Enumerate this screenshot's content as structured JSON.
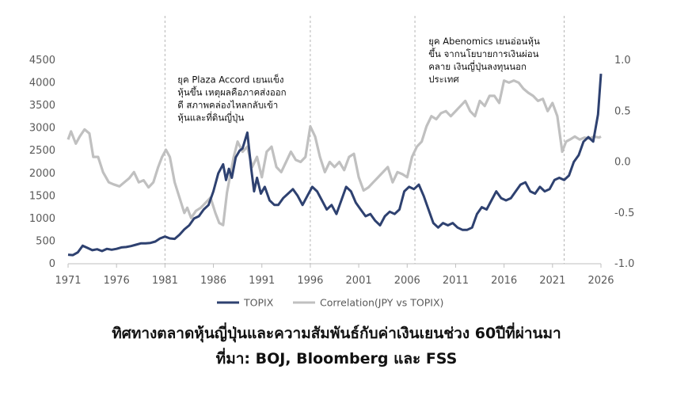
{
  "chart_data": {
    "type": "line",
    "title": "ทิศทางตลาดหุ้นญี่ปุ่นและความสัมพันธ์กับค่าเงินเยนช่วง 60ปีที่ผ่านมา",
    "source": "ที่มา: BOJ, Bloomberg และ FSS",
    "x_ticks": [
      "1971",
      "1976",
      "1981",
      "1986",
      "1991",
      "1996",
      "2001",
      "2006",
      "2011",
      "2016",
      "2021",
      "2026"
    ],
    "xlim": [
      1971,
      2026
    ],
    "ylim_left": [
      0,
      4500
    ],
    "y_ticks_left": [
      "0",
      "500",
      "1000",
      "1500",
      "2000",
      "2500",
      "3000",
      "3500",
      "4000",
      "4500"
    ],
    "ylim_right": [
      -1.0,
      1.0
    ],
    "y_ticks_right": [
      "-1.0",
      "-0.5",
      "0.0",
      "0.5",
      "1.0"
    ],
    "vlines": [
      1981,
      1996,
      2006.8,
      2022.2
    ],
    "annotations": [
      {
        "x": 1982.3,
        "y": 4000,
        "lines": [
          "ยุค Plaza Accord เยนแข็ง",
          "หุ้นขึ้น เหตุผลคือภาคส่งออก",
          "ดี สภาพคล่องไหลกลับเข้า",
          "หุ้นและที่ดินญี่ปุ่น"
        ]
      },
      {
        "x": 2008.2,
        "y": 4850,
        "lines": [
          "ยุค Abenomics เยนอ่อนหุ้น",
          "ขึ้น จากนโยบายการเงินผ่อน",
          "คลาย เงินญี่ปุ่นลงทุนนอก",
          "ประเทศ"
        ]
      }
    ],
    "series": [
      {
        "name": "TOPIX",
        "axis": "left",
        "color": "#2e4170",
        "x": [
          1971,
          1971.5,
          1972,
          1972.5,
          1973,
          1973.5,
          1974,
          1974.5,
          1975,
          1975.5,
          1976,
          1976.5,
          1977,
          1977.5,
          1978,
          1978.5,
          1979,
          1979.5,
          1980,
          1980.5,
          1981,
          1981.5,
          1982,
          1982.5,
          1983,
          1983.5,
          1984,
          1984.5,
          1985,
          1985.5,
          1986,
          1986.5,
          1987,
          1987.3,
          1987.6,
          1987.9,
          1988.3,
          1988.7,
          1989,
          1989.5,
          1989.9,
          1990.2,
          1990.5,
          1990.9,
          1991.3,
          1991.8,
          1992.3,
          1992.7,
          1993.2,
          1993.7,
          1994.2,
          1994.7,
          1995.2,
          1995.7,
          1996.2,
          1996.7,
          1997.2,
          1997.7,
          1998.2,
          1998.7,
          1999.2,
          1999.7,
          2000.2,
          2000.7,
          2001.2,
          2001.7,
          2002.2,
          2002.7,
          2003.2,
          2003.7,
          2004.2,
          2004.7,
          2005.2,
          2005.7,
          2006.2,
          2006.7,
          2007.2,
          2007.7,
          2008.2,
          2008.7,
          2009.2,
          2009.7,
          2010.2,
          2010.7,
          2011.2,
          2011.7,
          2012.2,
          2012.7,
          2013.2,
          2013.7,
          2014.2,
          2014.7,
          2015.2,
          2015.7,
          2016.2,
          2016.7,
          2017.2,
          2017.7,
          2018.2,
          2018.7,
          2019.2,
          2019.7,
          2020.2,
          2020.7,
          2021.2,
          2021.7,
          2022.2,
          2022.7,
          2023.2,
          2023.7,
          2024.2,
          2024.7,
          2025.2,
          2025.7,
          2026
        ],
        "values": [
          200,
          190,
          250,
          400,
          350,
          300,
          320,
          280,
          330,
          310,
          330,
          360,
          370,
          390,
          420,
          450,
          450,
          460,
          490,
          560,
          600,
          560,
          550,
          640,
          760,
          850,
          1000,
          1050,
          1200,
          1300,
          1600,
          2000,
          2200,
          1850,
          2100,
          1900,
          2350,
          2500,
          2550,
          2900,
          2100,
          1600,
          1900,
          1550,
          1700,
          1400,
          1300,
          1300,
          1450,
          1550,
          1650,
          1500,
          1300,
          1500,
          1700,
          1600,
          1400,
          1200,
          1300,
          1100,
          1400,
          1700,
          1600,
          1350,
          1200,
          1050,
          1100,
          950,
          850,
          1050,
          1150,
          1100,
          1200,
          1600,
          1700,
          1650,
          1750,
          1500,
          1200,
          900,
          800,
          900,
          850,
          900,
          800,
          750,
          750,
          800,
          1100,
          1250,
          1200,
          1400,
          1600,
          1450,
          1400,
          1450,
          1600,
          1750,
          1800,
          1600,
          1550,
          1700,
          1600,
          1650,
          1850,
          1900,
          1850,
          1950,
          2250,
          2400,
          2700,
          2800,
          2700,
          3300,
          4200
        ]
      },
      {
        "name": "Correlation(JPY vs TOPIX)",
        "axis": "right",
        "color": "#c0c0c0",
        "x": [
          1971,
          1971.3,
          1971.8,
          1972.2,
          1972.7,
          1973.2,
          1973.6,
          1974.1,
          1974.6,
          1975.2,
          1975.7,
          1976.3,
          1976.8,
          1977.3,
          1977.8,
          1978.3,
          1978.8,
          1979.3,
          1979.8,
          1980.3,
          1980.7,
          1981.1,
          1981.5,
          1982.0,
          1982.5,
          1983.0,
          1983.3,
          1983.7,
          1984.2,
          1984.7,
          1985.2,
          1985.7,
          1986.2,
          1986.6,
          1987.0,
          1987.4,
          1987.7,
          1988.1,
          1988.5,
          1989.0,
          1989.5,
          1990.0,
          1990.5,
          1991.0,
          1991.5,
          1992.0,
          1992.5,
          1993.0,
          1993.5,
          1994.0,
          1994.5,
          1995.0,
          1995.5,
          1996.0,
          1996.5,
          1997.0,
          1997.5,
          1998.0,
          1998.5,
          1999.0,
          1999.5,
          2000.0,
          2000.5,
          2001.0,
          2001.5,
          2002.0,
          2002.5,
          2003.0,
          2003.5,
          2004.0,
          2004.5,
          2005.0,
          2005.5,
          2006.0,
          2006.5,
          2007.0,
          2007.5,
          2008.0,
          2008.5,
          2009.0,
          2009.5,
          2010.0,
          2010.5,
          2011.0,
          2011.5,
          2012.0,
          2012.5,
          2013.0,
          2013.5,
          2014.0,
          2014.5,
          2015.0,
          2015.5,
          2016.0,
          2016.5,
          2017.0,
          2017.5,
          2018.0,
          2018.5,
          2019.0,
          2019.5,
          2020.0,
          2020.5,
          2021.0,
          2021.5,
          2022.0,
          2022.4,
          2022.8,
          2023.3,
          2023.8,
          2024.3,
          2024.8,
          2025.3,
          2025.8,
          2026
        ],
        "values": [
          0.22,
          0.3,
          0.18,
          0.25,
          0.32,
          0.28,
          0.05,
          0.05,
          -0.1,
          -0.2,
          -0.22,
          -0.24,
          -0.2,
          -0.16,
          -0.1,
          -0.2,
          -0.18,
          -0.25,
          -0.2,
          -0.05,
          0.05,
          0.12,
          0.05,
          -0.2,
          -0.35,
          -0.5,
          -0.45,
          -0.55,
          -0.48,
          -0.45,
          -0.4,
          -0.35,
          -0.5,
          -0.6,
          -0.62,
          -0.3,
          -0.15,
          0.05,
          0.2,
          0.1,
          0.15,
          -0.05,
          0.05,
          -0.15,
          0.1,
          0.15,
          -0.05,
          -0.1,
          0.0,
          0.1,
          0.02,
          0.0,
          0.05,
          0.35,
          0.25,
          0.05,
          -0.1,
          0.0,
          -0.05,
          0.0,
          -0.08,
          0.05,
          0.08,
          -0.15,
          -0.28,
          -0.25,
          -0.2,
          -0.15,
          -0.1,
          -0.05,
          -0.2,
          -0.1,
          -0.12,
          -0.15,
          0.05,
          0.15,
          0.2,
          0.35,
          0.45,
          0.42,
          0.48,
          0.5,
          0.45,
          0.5,
          0.55,
          0.6,
          0.5,
          0.45,
          0.6,
          0.55,
          0.65,
          0.65,
          0.58,
          0.8,
          0.78,
          0.8,
          0.78,
          0.72,
          0.68,
          0.65,
          0.6,
          0.62,
          0.5,
          0.58,
          0.45,
          0.1,
          0.2,
          0.22,
          0.25,
          0.22,
          0.24,
          0.23,
          0.25,
          0.24,
          0.25
        ]
      }
    ],
    "legend": {
      "placement": "bottom-center"
    }
  }
}
